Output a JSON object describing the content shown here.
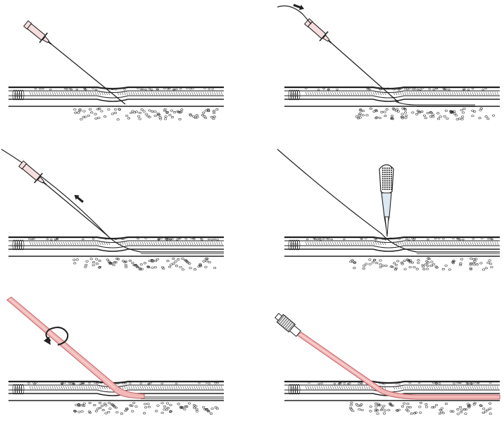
{
  "figure": {
    "steps": [
      {
        "id": 1,
        "action": "needle-insertion-into-vessel"
      },
      {
        "id": 2,
        "action": "guidewire-advanced-through-needle",
        "arrow": "advance"
      },
      {
        "id": 3,
        "action": "needle-withdrawn-over-guidewire",
        "arrow": "withdraw"
      },
      {
        "id": 4,
        "action": "skin-nick-with-scalpel-at-wire"
      },
      {
        "id": 5,
        "action": "catheter-threaded-over-wire-with-twisting",
        "arrow": "rotate"
      },
      {
        "id": 6,
        "action": "wire-removed-catheter-in-place-hub-attached"
      }
    ]
  },
  "colors": {
    "line": "#222222",
    "syringe_fill": "#f7dede",
    "catheter_fill": "#f2b8b8",
    "catheter_stroke": "#c86a6a",
    "scalpel_fill": "#dbe9f2",
    "hub_fill": "#e6e6e6"
  }
}
